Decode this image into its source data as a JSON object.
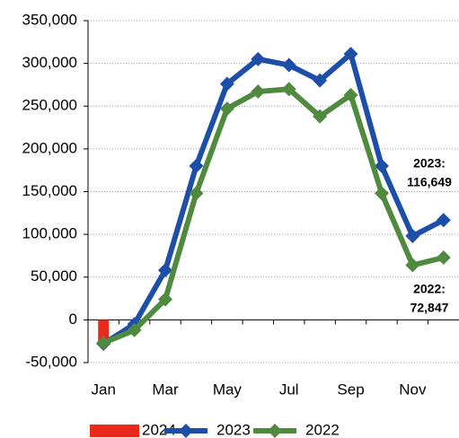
{
  "chart_data": {
    "type": "line",
    "categories": [
      "Jan",
      null,
      "Mar",
      null,
      "May",
      null,
      "Jul",
      null,
      "Sep",
      null,
      "Nov",
      null
    ],
    "series": [
      {
        "name": "2024",
        "type": "bar",
        "color": "#e8291c",
        "values": [
          -25000,
          null,
          null,
          null,
          null,
          null,
          null,
          null,
          null,
          null,
          null,
          null
        ]
      },
      {
        "name": "2023",
        "type": "line",
        "color": "#1d4fa8",
        "values": [
          -28000,
          -5000,
          58000,
          180000,
          276000,
          305000,
          298000,
          280000,
          311000,
          180000,
          98000,
          116649
        ],
        "value_labels": [
          null,
          null,
          null,
          null,
          null,
          null,
          null,
          null,
          null,
          null,
          null,
          "116,649"
        ]
      },
      {
        "name": "2022",
        "type": "line",
        "color": "#4f8a3f",
        "values": [
          -27000,
          -12000,
          24000,
          148000,
          247000,
          267000,
          270000,
          238000,
          263000,
          148000,
          64000,
          72847
        ],
        "value_labels": [
          null,
          null,
          null,
          null,
          null,
          null,
          null,
          null,
          null,
          null,
          null,
          "72,847"
        ]
      }
    ],
    "annotations": [
      "2023:",
      "2022:"
    ],
    "ylim": [
      -50000,
      350000
    ],
    "yticks": [
      {
        "value": -50000,
        "label": "-50,000"
      },
      0,
      {
        "value": 50000,
        "label": "50,000"
      },
      {
        "value": 100000,
        "label": "100,000"
      },
      {
        "value": 150000,
        "label": "150,000"
      },
      {
        "value": 200000,
        "label": "200,000"
      },
      {
        "value": 250000,
        "label": "250,000"
      },
      {
        "value": 300000,
        "label": "300,000"
      },
      {
        "value": 350000,
        "label": "350,000"
      }
    ],
    "grid": true,
    "legend": "bottom"
  }
}
